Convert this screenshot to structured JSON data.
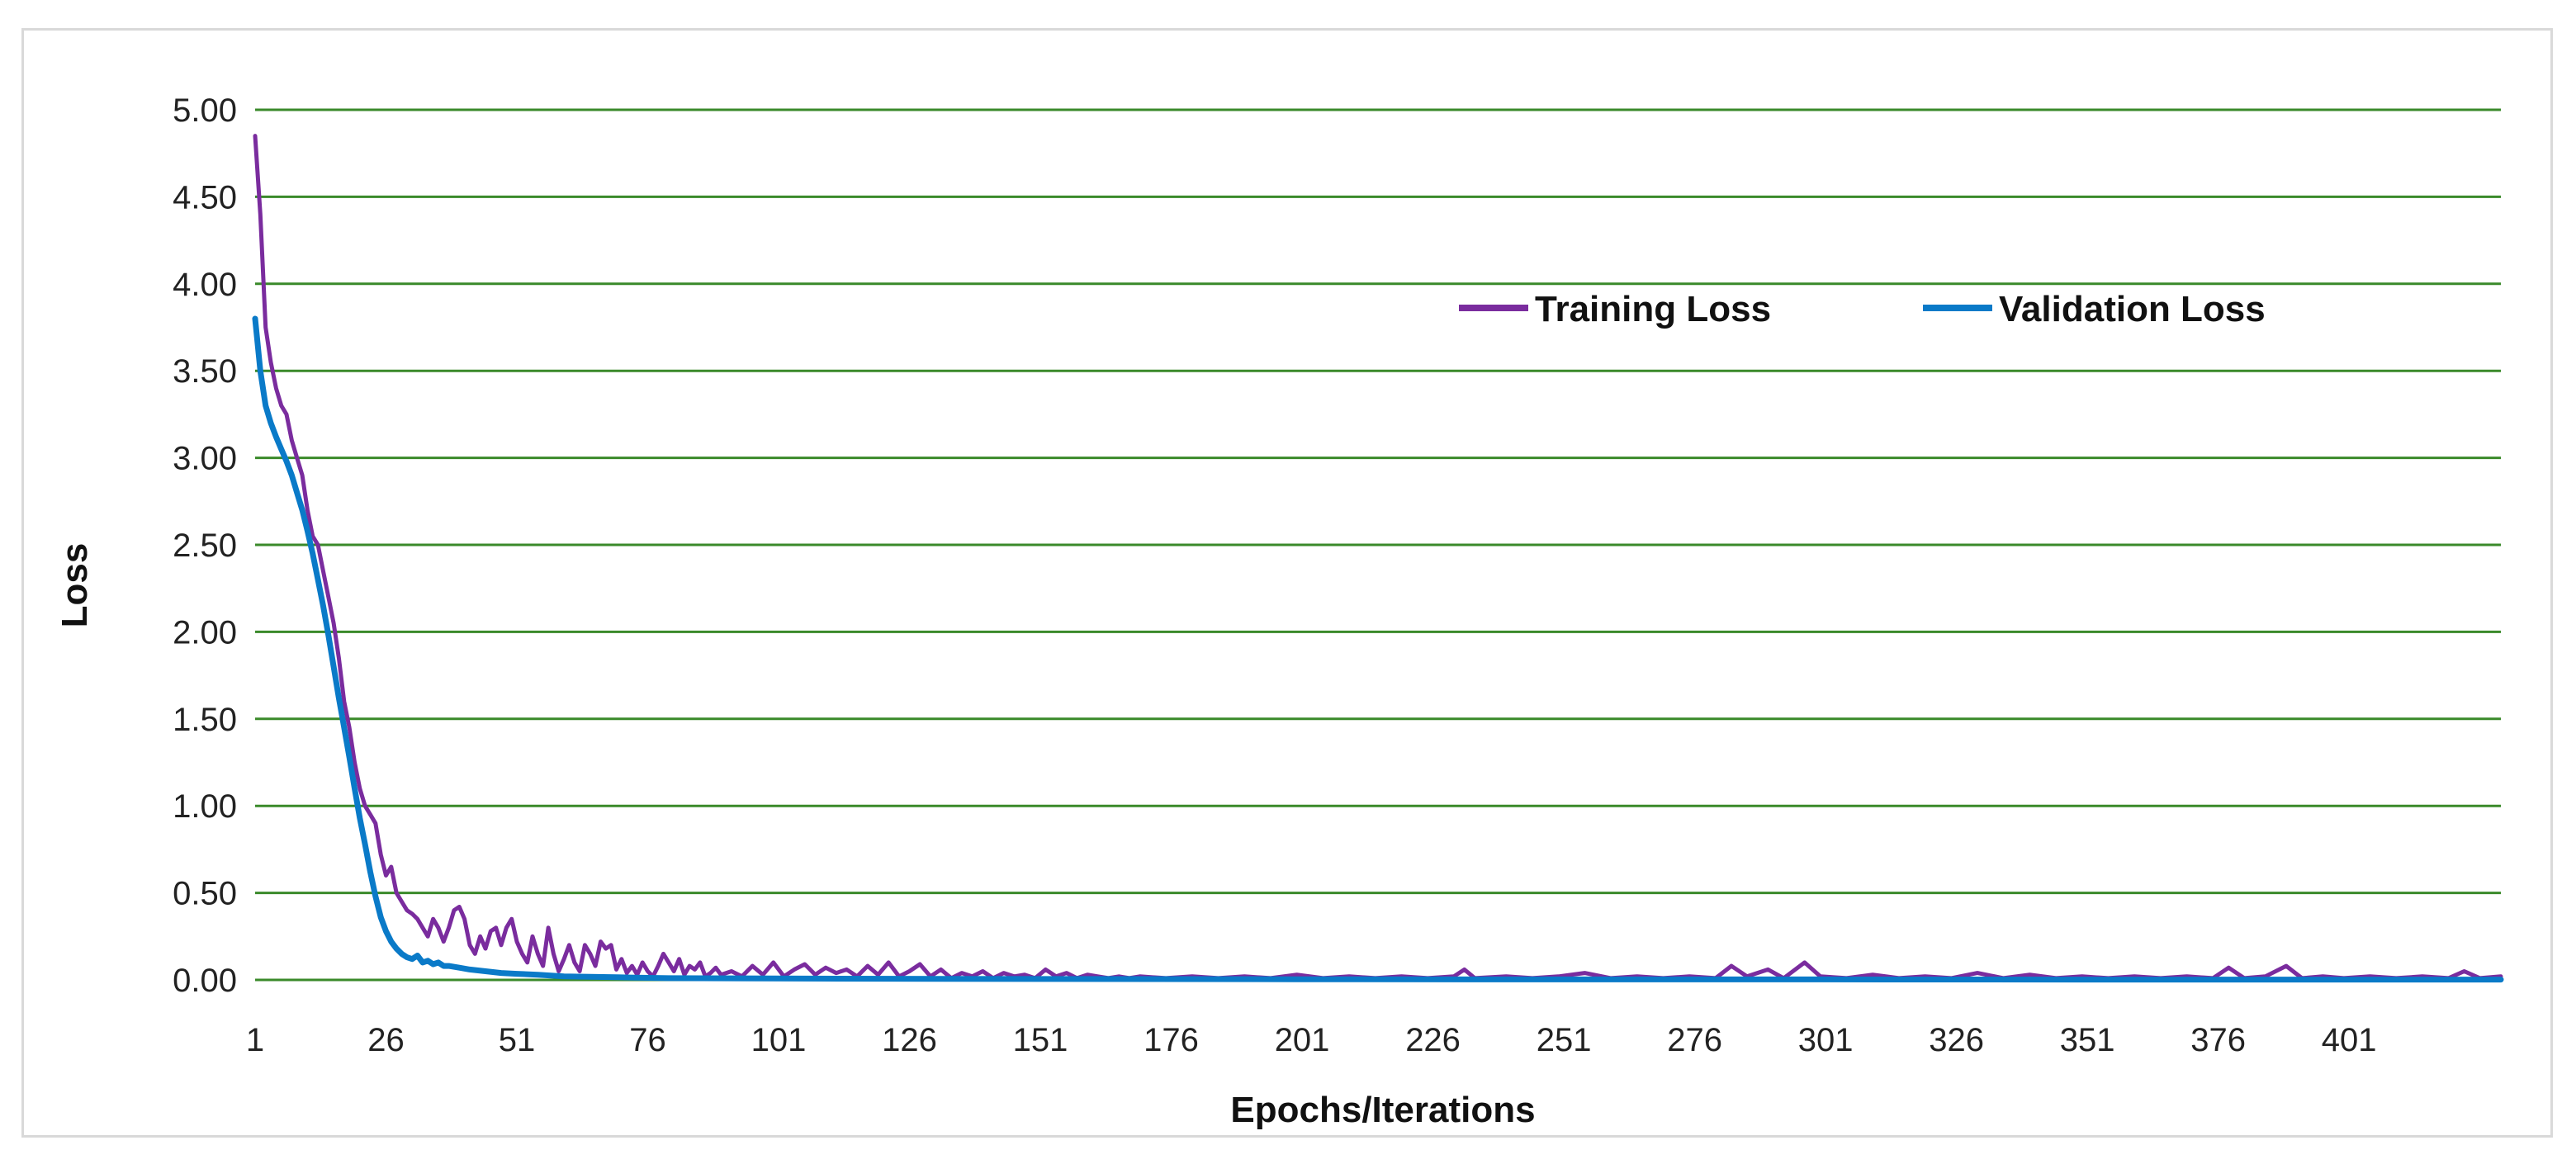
{
  "chart_data": {
    "type": "line",
    "title": "",
    "xlabel": "Epochs/Iterations",
    "ylabel": "Loss",
    "xlim": [
      1,
      430
    ],
    "ylim": [
      0,
      5
    ],
    "yticks": [
      "0.00",
      "0.50",
      "1.00",
      "1.50",
      "2.00",
      "2.50",
      "3.00",
      "3.50",
      "4.00",
      "4.50",
      "5.00"
    ],
    "xticks": [
      "1",
      "26",
      "51",
      "76",
      "101",
      "126",
      "151",
      "176",
      "201",
      "226",
      "251",
      "276",
      "301",
      "326",
      "351",
      "376",
      "401"
    ],
    "grid": "horizontal",
    "legend": "top-right",
    "colors": {
      "grid": "#3a8a2a",
      "training": "#7a2c9e",
      "validation": "#0a7ac8"
    },
    "series": [
      {
        "name": "Training Loss",
        "color": "#7a2c9e",
        "points": [
          [
            1,
            4.85
          ],
          [
            2,
            4.4
          ],
          [
            3,
            3.75
          ],
          [
            4,
            3.55
          ],
          [
            5,
            3.4
          ],
          [
            6,
            3.3
          ],
          [
            7,
            3.25
          ],
          [
            8,
            3.1
          ],
          [
            9,
            3.0
          ],
          [
            10,
            2.9
          ],
          [
            11,
            2.7
          ],
          [
            12,
            2.55
          ],
          [
            13,
            2.5
          ],
          [
            14,
            2.35
          ],
          [
            15,
            2.2
          ],
          [
            16,
            2.05
          ],
          [
            17,
            1.85
          ],
          [
            18,
            1.6
          ],
          [
            19,
            1.45
          ],
          [
            20,
            1.25
          ],
          [
            21,
            1.1
          ],
          [
            22,
            1.0
          ],
          [
            23,
            0.95
          ],
          [
            24,
            0.9
          ],
          [
            25,
            0.72
          ],
          [
            26,
            0.6
          ],
          [
            27,
            0.65
          ],
          [
            28,
            0.5
          ],
          [
            29,
            0.45
          ],
          [
            30,
            0.4
          ],
          [
            31,
            0.38
          ],
          [
            32,
            0.35
          ],
          [
            33,
            0.3
          ],
          [
            34,
            0.25
          ],
          [
            35,
            0.35
          ],
          [
            36,
            0.3
          ],
          [
            37,
            0.22
          ],
          [
            38,
            0.3
          ],
          [
            39,
            0.4
          ],
          [
            40,
            0.42
          ],
          [
            41,
            0.35
          ],
          [
            42,
            0.2
          ],
          [
            43,
            0.15
          ],
          [
            44,
            0.25
          ],
          [
            45,
            0.18
          ],
          [
            46,
            0.28
          ],
          [
            47,
            0.3
          ],
          [
            48,
            0.2
          ],
          [
            49,
            0.3
          ],
          [
            50,
            0.35
          ],
          [
            51,
            0.22
          ],
          [
            52,
            0.15
          ],
          [
            53,
            0.1
          ],
          [
            54,
            0.25
          ],
          [
            55,
            0.15
          ],
          [
            56,
            0.08
          ],
          [
            57,
            0.3
          ],
          [
            58,
            0.15
          ],
          [
            59,
            0.05
          ],
          [
            60,
            0.12
          ],
          [
            61,
            0.2
          ],
          [
            62,
            0.1
          ],
          [
            63,
            0.05
          ],
          [
            64,
            0.2
          ],
          [
            65,
            0.15
          ],
          [
            66,
            0.08
          ],
          [
            67,
            0.22
          ],
          [
            68,
            0.18
          ],
          [
            69,
            0.2
          ],
          [
            70,
            0.06
          ],
          [
            71,
            0.12
          ],
          [
            72,
            0.04
          ],
          [
            73,
            0.08
          ],
          [
            74,
            0.03
          ],
          [
            75,
            0.1
          ],
          [
            76,
            0.05
          ],
          [
            77,
            0.02
          ],
          [
            78,
            0.08
          ],
          [
            79,
            0.15
          ],
          [
            80,
            0.1
          ],
          [
            81,
            0.05
          ],
          [
            82,
            0.12
          ],
          [
            83,
            0.03
          ],
          [
            84,
            0.08
          ],
          [
            85,
            0.06
          ],
          [
            86,
            0.1
          ],
          [
            87,
            0.02
          ],
          [
            88,
            0.04
          ],
          [
            89,
            0.07
          ],
          [
            90,
            0.03
          ],
          [
            92,
            0.05
          ],
          [
            94,
            0.02
          ],
          [
            96,
            0.08
          ],
          [
            98,
            0.03
          ],
          [
            100,
            0.1
          ],
          [
            102,
            0.02
          ],
          [
            104,
            0.06
          ],
          [
            106,
            0.09
          ],
          [
            108,
            0.03
          ],
          [
            110,
            0.07
          ],
          [
            112,
            0.04
          ],
          [
            114,
            0.06
          ],
          [
            116,
            0.02
          ],
          [
            118,
            0.08
          ],
          [
            120,
            0.03
          ],
          [
            122,
            0.1
          ],
          [
            124,
            0.02
          ],
          [
            126,
            0.05
          ],
          [
            128,
            0.09
          ],
          [
            130,
            0.02
          ],
          [
            132,
            0.06
          ],
          [
            134,
            0.01
          ],
          [
            136,
            0.04
          ],
          [
            138,
            0.02
          ],
          [
            140,
            0.05
          ],
          [
            142,
            0.01
          ],
          [
            144,
            0.04
          ],
          [
            146,
            0.02
          ],
          [
            148,
            0.03
          ],
          [
            150,
            0.01
          ],
          [
            152,
            0.06
          ],
          [
            154,
            0.02
          ],
          [
            156,
            0.04
          ],
          [
            158,
            0.01
          ],
          [
            160,
            0.03
          ],
          [
            162,
            0.02
          ],
          [
            164,
            0.01
          ],
          [
            166,
            0.02
          ],
          [
            168,
            0.01
          ],
          [
            170,
            0.02
          ],
          [
            175,
            0.01
          ],
          [
            180,
            0.02
          ],
          [
            185,
            0.01
          ],
          [
            190,
            0.02
          ],
          [
            195,
            0.01
          ],
          [
            200,
            0.03
          ],
          [
            205,
            0.01
          ],
          [
            210,
            0.02
          ],
          [
            215,
            0.01
          ],
          [
            220,
            0.02
          ],
          [
            225,
            0.01
          ],
          [
            230,
            0.02
          ],
          [
            232,
            0.06
          ],
          [
            234,
            0.01
          ],
          [
            240,
            0.02
          ],
          [
            245,
            0.01
          ],
          [
            250,
            0.02
          ],
          [
            255,
            0.04
          ],
          [
            260,
            0.01
          ],
          [
            265,
            0.02
          ],
          [
            270,
            0.01
          ],
          [
            275,
            0.02
          ],
          [
            280,
            0.01
          ],
          [
            283,
            0.08
          ],
          [
            286,
            0.02
          ],
          [
            290,
            0.06
          ],
          [
            293,
            0.01
          ],
          [
            297,
            0.1
          ],
          [
            300,
            0.02
          ],
          [
            305,
            0.01
          ],
          [
            310,
            0.03
          ],
          [
            315,
            0.01
          ],
          [
            320,
            0.02
          ],
          [
            325,
            0.01
          ],
          [
            330,
            0.04
          ],
          [
            335,
            0.01
          ],
          [
            340,
            0.03
          ],
          [
            345,
            0.01
          ],
          [
            350,
            0.02
          ],
          [
            355,
            0.01
          ],
          [
            360,
            0.02
          ],
          [
            365,
            0.01
          ],
          [
            370,
            0.02
          ],
          [
            375,
            0.01
          ],
          [
            378,
            0.07
          ],
          [
            381,
            0.01
          ],
          [
            385,
            0.02
          ],
          [
            389,
            0.08
          ],
          [
            392,
            0.01
          ],
          [
            396,
            0.02
          ],
          [
            400,
            0.01
          ],
          [
            405,
            0.02
          ],
          [
            410,
            0.01
          ],
          [
            415,
            0.02
          ],
          [
            420,
            0.01
          ],
          [
            423,
            0.05
          ],
          [
            426,
            0.01
          ],
          [
            430,
            0.02
          ]
        ]
      },
      {
        "name": "Validation Loss",
        "color": "#0a7ac8",
        "points": [
          [
            1,
            3.8
          ],
          [
            2,
            3.5
          ],
          [
            3,
            3.3
          ],
          [
            4,
            3.2
          ],
          [
            5,
            3.12
          ],
          [
            6,
            3.05
          ],
          [
            7,
            2.98
          ],
          [
            8,
            2.9
          ],
          [
            9,
            2.8
          ],
          [
            10,
            2.7
          ],
          [
            11,
            2.58
          ],
          [
            12,
            2.45
          ],
          [
            13,
            2.3
          ],
          [
            14,
            2.15
          ],
          [
            15,
            1.98
          ],
          [
            16,
            1.8
          ],
          [
            17,
            1.62
          ],
          [
            18,
            1.45
          ],
          [
            19,
            1.28
          ],
          [
            20,
            1.1
          ],
          [
            21,
            0.93
          ],
          [
            22,
            0.78
          ],
          [
            23,
            0.62
          ],
          [
            24,
            0.48
          ],
          [
            25,
            0.36
          ],
          [
            26,
            0.28
          ],
          [
            27,
            0.22
          ],
          [
            28,
            0.18
          ],
          [
            29,
            0.15
          ],
          [
            30,
            0.13
          ],
          [
            31,
            0.12
          ],
          [
            32,
            0.14
          ],
          [
            33,
            0.1
          ],
          [
            34,
            0.11
          ],
          [
            35,
            0.09
          ],
          [
            36,
            0.1
          ],
          [
            37,
            0.08
          ],
          [
            38,
            0.08
          ],
          [
            40,
            0.07
          ],
          [
            42,
            0.06
          ],
          [
            45,
            0.05
          ],
          [
            48,
            0.04
          ],
          [
            51,
            0.035
          ],
          [
            55,
            0.03
          ],
          [
            60,
            0.02
          ],
          [
            70,
            0.015
          ],
          [
            80,
            0.01
          ],
          [
            100,
            0.008
          ],
          [
            150,
            0.005
          ],
          [
            200,
            0.004
          ],
          [
            250,
            0.003
          ],
          [
            300,
            0.003
          ],
          [
            350,
            0.002
          ],
          [
            400,
            0.002
          ],
          [
            430,
            0.002
          ]
        ]
      }
    ]
  }
}
